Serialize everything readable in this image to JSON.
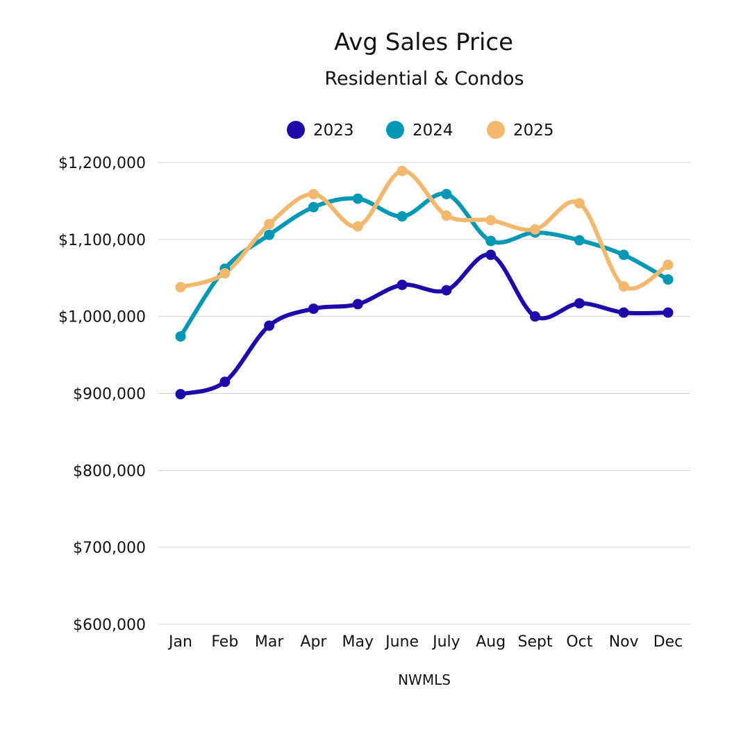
{
  "chart_data": {
    "type": "line",
    "title": "Avg Sales Price",
    "subtitle": "Residential & Condos",
    "source": "NWMLS",
    "categories": [
      "Jan",
      "Feb",
      "Mar",
      "Apr",
      "May",
      "June",
      "July",
      "Aug",
      "Sept",
      "Oct",
      "Nov",
      "Dec"
    ],
    "ylim": [
      600000,
      1200000
    ],
    "yticks": [
      600000,
      700000,
      800000,
      900000,
      1000000,
      1100000,
      1200000
    ],
    "ytick_labels": [
      "$600,000",
      "$700,000",
      "$800,000",
      "$900,000",
      "$1,000,000",
      "$1,100,000",
      "$1,200,000"
    ],
    "grid": true,
    "legend_position": "top",
    "series": [
      {
        "name": "2023",
        "color": "#1e0aa8",
        "values": [
          899000,
          915000,
          988000,
          1010000,
          1016000,
          1041000,
          1034000,
          1080000,
          1000000,
          1017000,
          1005000,
          1005000
        ]
      },
      {
        "name": "2024",
        "color": "#0098b4",
        "values": [
          974000,
          1062000,
          1106000,
          1142000,
          1153000,
          1130000,
          1159000,
          1098000,
          1109000,
          1099000,
          1080000,
          1048000
        ]
      },
      {
        "name": "2025",
        "color": "#f2b86e",
        "values": [
          1038000,
          1056000,
          1120000,
          1159000,
          1117000,
          1189000,
          1131000,
          1125000,
          1113000,
          1147000,
          1039000,
          1067000
        ]
      }
    ]
  }
}
